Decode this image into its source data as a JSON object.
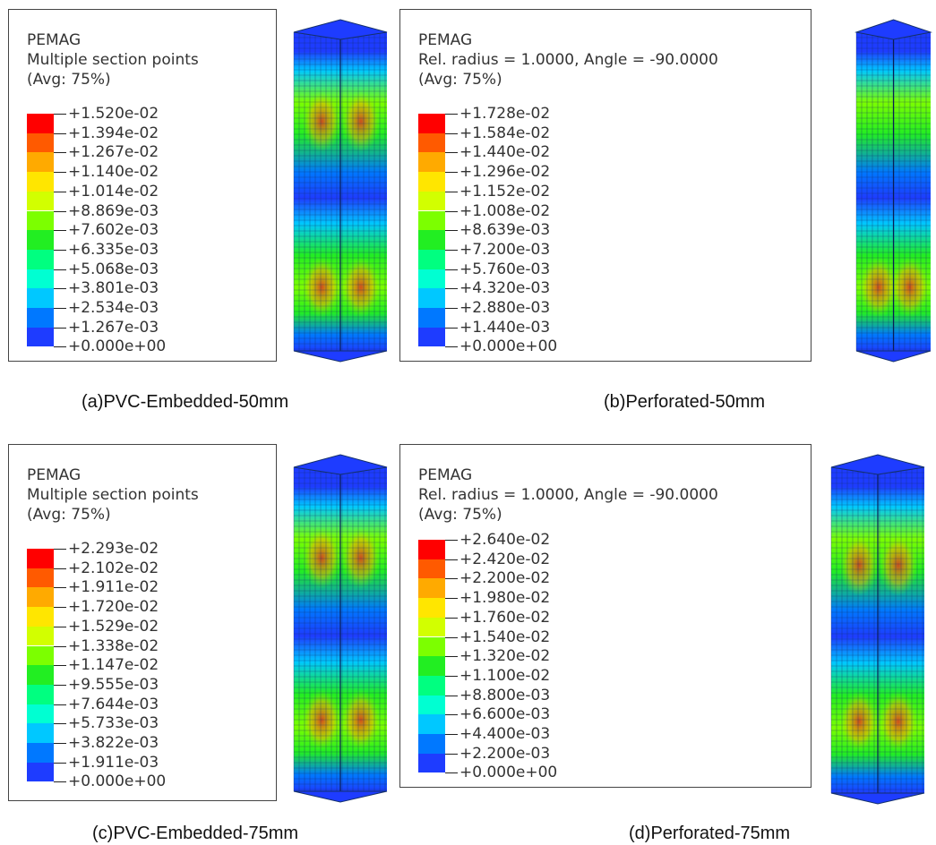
{
  "panels": [
    {
      "id": "a",
      "legend": {
        "title": "PEMAG",
        "subtitle": "Multiple section points",
        "avg": "(Avg: 75%)",
        "values": [
          "+1.520e-02",
          "+1.394e-02",
          "+1.267e-02",
          "+1.140e-02",
          "+1.014e-02",
          "+8.869e-03",
          "+7.602e-03",
          "+6.335e-03",
          "+5.068e-03",
          "+3.801e-03",
          "+2.534e-03",
          "+1.267e-03",
          "+0.000e+00"
        ]
      },
      "caption": "(a)PVC-Embedded-50mm"
    },
    {
      "id": "b",
      "legend": {
        "title": "PEMAG",
        "subtitle": "Rel. radius = 1.0000, Angle = -90.0000",
        "avg": "(Avg: 75%)",
        "values": [
          "+1.728e-02",
          "+1.584e-02",
          "+1.440e-02",
          "+1.296e-02",
          "+1.152e-02",
          "+1.008e-02",
          "+8.639e-03",
          "+7.200e-03",
          "+5.760e-03",
          "+4.320e-03",
          "+2.880e-03",
          "+1.440e-03",
          "+0.000e+00"
        ]
      },
      "caption": "(b)Perforated-50mm"
    },
    {
      "id": "c",
      "legend": {
        "title": "PEMAG",
        "subtitle": "Multiple section points",
        "avg": "(Avg: 75%)",
        "values": [
          "+2.293e-02",
          "+2.102e-02",
          "+1.911e-02",
          "+1.720e-02",
          "+1.529e-02",
          "+1.338e-02",
          "+1.147e-02",
          "+9.555e-03",
          "+7.644e-03",
          "+5.733e-03",
          "+3.822e-03",
          "+1.911e-03",
          "+0.000e+00"
        ]
      },
      "caption": "(c)PVC-Embedded-75mm"
    },
    {
      "id": "d",
      "legend": {
        "title": "PEMAG",
        "subtitle": "Rel. radius = 1.0000, Angle = -90.0000",
        "avg": "(Avg: 75%)",
        "values": [
          "+2.640e-02",
          "+2.420e-02",
          "+2.200e-02",
          "+1.980e-02",
          "+1.760e-02",
          "+1.540e-02",
          "+1.320e-02",
          "+1.100e-02",
          "+8.800e-03",
          "+6.600e-03",
          "+4.400e-03",
          "+2.200e-03",
          "+0.000e+00"
        ]
      },
      "caption": "(d)Perforated-75mm"
    }
  ],
  "colormap": [
    "#ff0000",
    "#ff5a00",
    "#ffaa00",
    "#ffe600",
    "#d2ff00",
    "#7cff00",
    "#22ee22",
    "#00ff80",
    "#00ffd2",
    "#00c8ff",
    "#0078ff",
    "#1e3cff",
    "#0000ff"
  ]
}
